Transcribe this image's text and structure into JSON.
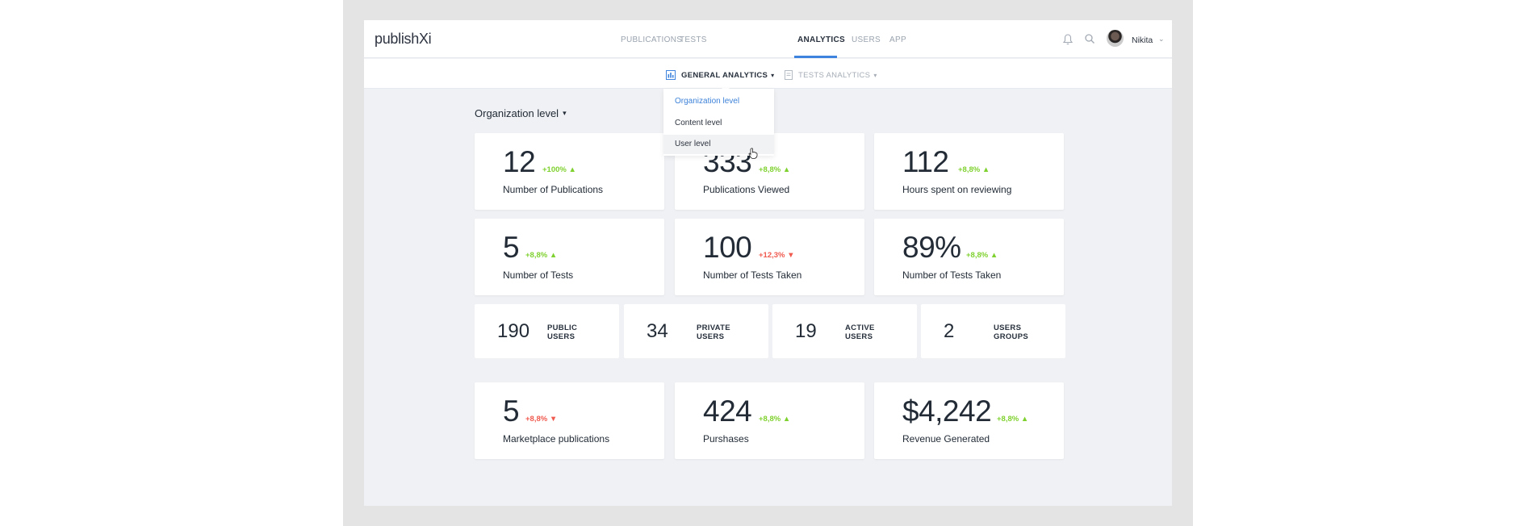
{
  "app": {
    "logo": "publishXi"
  },
  "nav": {
    "tabs": [
      {
        "label": "PUBLICATIONS",
        "active": false
      },
      {
        "label": "TESTS",
        "active": false
      },
      {
        "label": "ANALYTICS",
        "active": true
      },
      {
        "label": "USERS",
        "active": false
      },
      {
        "label": "APP",
        "active": false
      }
    ]
  },
  "user": {
    "name": "Nikita"
  },
  "subnav": {
    "general": "GENERAL ANALYTICS",
    "tests": "TESTS ANALYTICS"
  },
  "dropdown": {
    "items": [
      {
        "label": "Organization level",
        "selected": true
      },
      {
        "label": "Content level",
        "selected": false
      },
      {
        "label": "User level",
        "hovered": true
      }
    ]
  },
  "section": {
    "title": "Organization level"
  },
  "cards": [
    {
      "value": "12",
      "delta": "+100%",
      "trend": "up",
      "label": "Number of Publications"
    },
    {
      "value": "333",
      "delta": "+8,8%",
      "trend": "up",
      "label": "Publications Viewed"
    },
    {
      "value": "112",
      "delta": "+8,8%",
      "trend": "up",
      "label": "Hours spent on reviewing"
    },
    {
      "value": "5",
      "delta": "+8,8%",
      "trend": "up",
      "label": "Number of Tests"
    },
    {
      "value": "100",
      "delta": "+12,3%",
      "trend": "down",
      "label": "Number of Tests Taken"
    },
    {
      "value": "89%",
      "delta": "+8,8%",
      "trend": "up",
      "label": "Number of Tests Taken"
    }
  ],
  "mini_cards": [
    {
      "value": "190",
      "label_line1": "PUBLIC",
      "label_line2": "USERS"
    },
    {
      "value": "34",
      "label_line1": "PRIVATE",
      "label_line2": "USERS"
    },
    {
      "value": "19",
      "label_line1": "ACTIVE",
      "label_line2": "USERS"
    },
    {
      "value": "2",
      "label_line1": "USERS",
      "label_line2": "GROUPS"
    }
  ],
  "market_cards": [
    {
      "value": "5",
      "delta": "+8,8%",
      "trend": "down",
      "label": "Marketplace publications"
    },
    {
      "value": "424",
      "delta": "+8,8%",
      "trend": "up",
      "label": "Purshases"
    },
    {
      "value": "$4,242",
      "delta": "+8,8%",
      "trend": "up",
      "label": "Revenue Generated"
    }
  ],
  "colors": {
    "accent": "#3e84de",
    "up": "#7fd12f",
    "down": "#f05a4f"
  }
}
